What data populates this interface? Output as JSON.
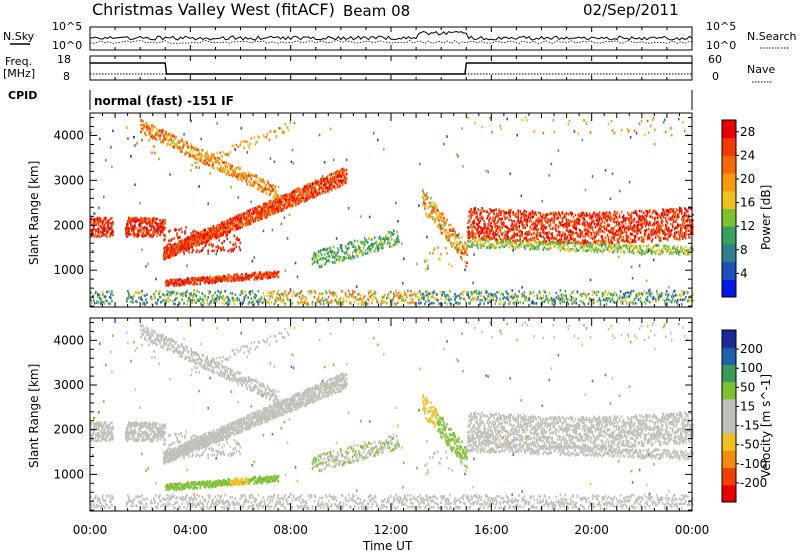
{
  "header": {
    "station": "Christmas Valley West (fitACF)",
    "beam": "Beam 08",
    "date": "02/Sep/2011"
  },
  "strip": {
    "nsky_label": "N.Sky",
    "nsky_ticks": [
      "10^5",
      "10^0"
    ],
    "nsearch_label": "N.Search",
    "nsearch_ticks": [
      "10^5",
      "10^0"
    ],
    "freq_label_1": "Freq.",
    "freq_label_2": "[MHz]",
    "freq_ticks": [
      "18",
      "8"
    ],
    "nave_label": "Nave",
    "nave_ticks": [
      "60",
      "0"
    ],
    "cpid_label": "CPID",
    "cpid_value": "normal (fast) -151 IF"
  },
  "colors": {
    "power_scale": [
      "#0018e0",
      "#1e4fb8",
      "#2f7f8a",
      "#3aa060",
      "#7cc232",
      "#f0c020",
      "#f59a10",
      "#f56a08",
      "#f03a05",
      "#e80000"
    ],
    "velocity_scale": [
      "#e80000",
      "#f04000",
      "#f58a10",
      "#f0c020",
      "#c0c0b8",
      "#c0c0b8",
      "#7cc232",
      "#3a9a5a",
      "#2060a8",
      "#1a2a9a"
    ],
    "gray_scatter": "#c0c0b8"
  },
  "chart_data": [
    {
      "type": "heatmap",
      "name": "power",
      "ylabel": "Slant Range [km]",
      "xlabel": "Time UT",
      "xlim": [
        0,
        24
      ],
      "ylim": [
        180,
        4500
      ],
      "x_ticks": [
        "00:00",
        "04:00",
        "08:00",
        "12:00",
        "16:00",
        "20:00",
        "00:00"
      ],
      "y_ticks": [
        1000,
        2000,
        3000,
        4000
      ],
      "colorbar_label": "Power [dB]",
      "colorbar_ticks": [
        4,
        8,
        12,
        16,
        20,
        24,
        28
      ],
      "colorbar_range": [
        0,
        30
      ],
      "data_gaps_hours": [
        [
          0.9,
          1.4
        ]
      ],
      "features": [
        {
          "name": "dayside band 00-03 UT",
          "x": [
            0,
            3
          ],
          "y_center": 1950,
          "y_halfwidth": 200,
          "power_db": 26
        },
        {
          "name": "main echo band 03-10 UT",
          "x": [
            3,
            10
          ],
          "y_start": 1350,
          "y_end": 3100,
          "power_db": 26
        },
        {
          "name": "upper branch 03-07 UT",
          "x": [
            2.0,
            7.5
          ],
          "y_start": 4200,
          "y_end": 2600,
          "power_db": 22
        },
        {
          "name": "low range band 03-07 UT",
          "x": [
            3.0,
            7.5
          ],
          "y_start": 650,
          "y_end": 900,
          "power_db": 25
        },
        {
          "name": "evening band 15-24 UT",
          "x": [
            15,
            24
          ],
          "y_center": 2000,
          "y_halfwidth": 350,
          "power_db": 27
        },
        {
          "name": "near-range clutter",
          "x": [
            0,
            24
          ],
          "y_center": 300,
          "y_halfwidth": 120,
          "power_db": 8
        }
      ]
    },
    {
      "type": "heatmap",
      "name": "velocity",
      "ylabel": "Slant Range [km]",
      "xlabel": "Time UT",
      "xlim": [
        0,
        24
      ],
      "ylim": [
        180,
        4500
      ],
      "x_ticks": [
        "00:00",
        "04:00",
        "08:00",
        "12:00",
        "16:00",
        "20:00",
        "00:00"
      ],
      "y_ticks": [
        1000,
        2000,
        3000,
        4000
      ],
      "colorbar_label": "Velocity [m s^-1]",
      "colorbar_ticks": [
        200,
        100,
        50,
        15,
        -15,
        -50,
        -100,
        -200
      ],
      "colorbar_range": [
        -250,
        250
      ],
      "features": [
        {
          "name": "ground scatter 00-03 UT",
          "x": [
            0,
            3
          ],
          "y_center": 1950,
          "velocity": 0
        },
        {
          "name": "main band ground scatter",
          "x": [
            3,
            10
          ],
          "y_start": 1350,
          "y_end": 3100,
          "velocity": 0
        },
        {
          "name": "low range echoes",
          "x": [
            3,
            7.5
          ],
          "y_center": 800,
          "velocity": -60
        },
        {
          "name": "12 UT streak",
          "x": [
            10.5,
            12.5
          ],
          "y_center": 1500,
          "velocity": -80
        },
        {
          "name": "evening ground scatter",
          "x": [
            15,
            24
          ],
          "y_center": 2000,
          "velocity": 0
        },
        {
          "name": "near-range echoes",
          "x": [
            8,
            13
          ],
          "y_center": 350,
          "velocity": -40
        }
      ]
    }
  ]
}
